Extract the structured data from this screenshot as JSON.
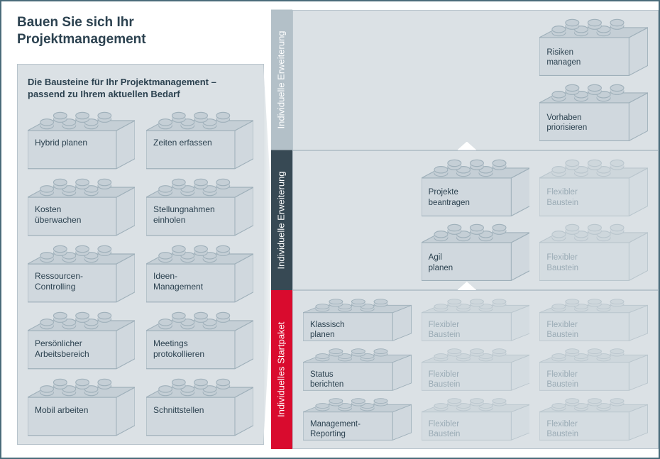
{
  "colors": {
    "border": "#4a6b7a",
    "panel_bg": "#dbe1e5",
    "panel_border": "#b8c4cc",
    "brick_fill": "#d0d8de",
    "brick_stroke": "#9fb0ba",
    "brick_fill_faded": "#e3e8ec",
    "text": "#2c4250",
    "text_faded": "#9aabb5",
    "tab_grey": "#b3c0c8",
    "tab_dark": "#374954",
    "tab_red": "#d90b2e"
  },
  "typography": {
    "title_fontsize": 19,
    "subtitle_fontsize": 13,
    "label_fontsize": 12,
    "tab_fontsize": 13
  },
  "title": "Bauen Sie sich Ihr\nProjektmanagement",
  "subtitle": "Die Bausteine für Ihr Projektmanagement –\npassend zu Ihrem aktuellen Bedarf",
  "left_bricks": [
    "Hybrid planen",
    "Zeiten erfassen",
    "Kosten\nüberwachen",
    "Stellungnahmen\neinholen",
    "Ressourcen-\nControlling",
    "Ideen-\nManagement",
    "Persönlicher\nArbeitsbereich",
    "Meetings\nprotokollieren",
    "Mobil arbeiten",
    "Schnittstellen"
  ],
  "tiers": [
    {
      "tab": "Individuelle\nErweiterung",
      "color": "grey",
      "rows": 2,
      "cols": 3,
      "cells": [
        null,
        null,
        {
          "label": "Risiken\nmanagen",
          "faded": false
        },
        null,
        null,
        {
          "label": "Vorhaben\npriorisieren",
          "faded": false
        }
      ]
    },
    {
      "tab": "Individuelle\nErweiterung",
      "color": "dark",
      "rows": 2,
      "cols": 3,
      "cells": [
        null,
        {
          "label": "Projekte\nbeantragen",
          "faded": false
        },
        {
          "label": "Flexibler\nBaustein",
          "faded": true
        },
        null,
        {
          "label": "Agil\nplanen",
          "faded": false
        },
        {
          "label": "Flexibler\nBaustein",
          "faded": true
        }
      ]
    },
    {
      "tab": "Individuelles\nStartpaket",
      "color": "red",
      "rows": 3,
      "cols": 3,
      "cells": [
        {
          "label": "Klassisch\nplanen",
          "faded": false
        },
        {
          "label": "Flexibler\nBaustein",
          "faded": true
        },
        {
          "label": "Flexibler\nBaustein",
          "faded": true
        },
        {
          "label": "Status\nberichten",
          "faded": false
        },
        {
          "label": "Flexibler\nBaustein",
          "faded": true
        },
        {
          "label": "Flexibler\nBaustein",
          "faded": true
        },
        {
          "label": "Management-\nReporting",
          "faded": false
        },
        {
          "label": "Flexibler\nBaustein",
          "faded": true
        },
        {
          "label": "Flexibler\nBaustein",
          "faded": true
        }
      ]
    }
  ]
}
